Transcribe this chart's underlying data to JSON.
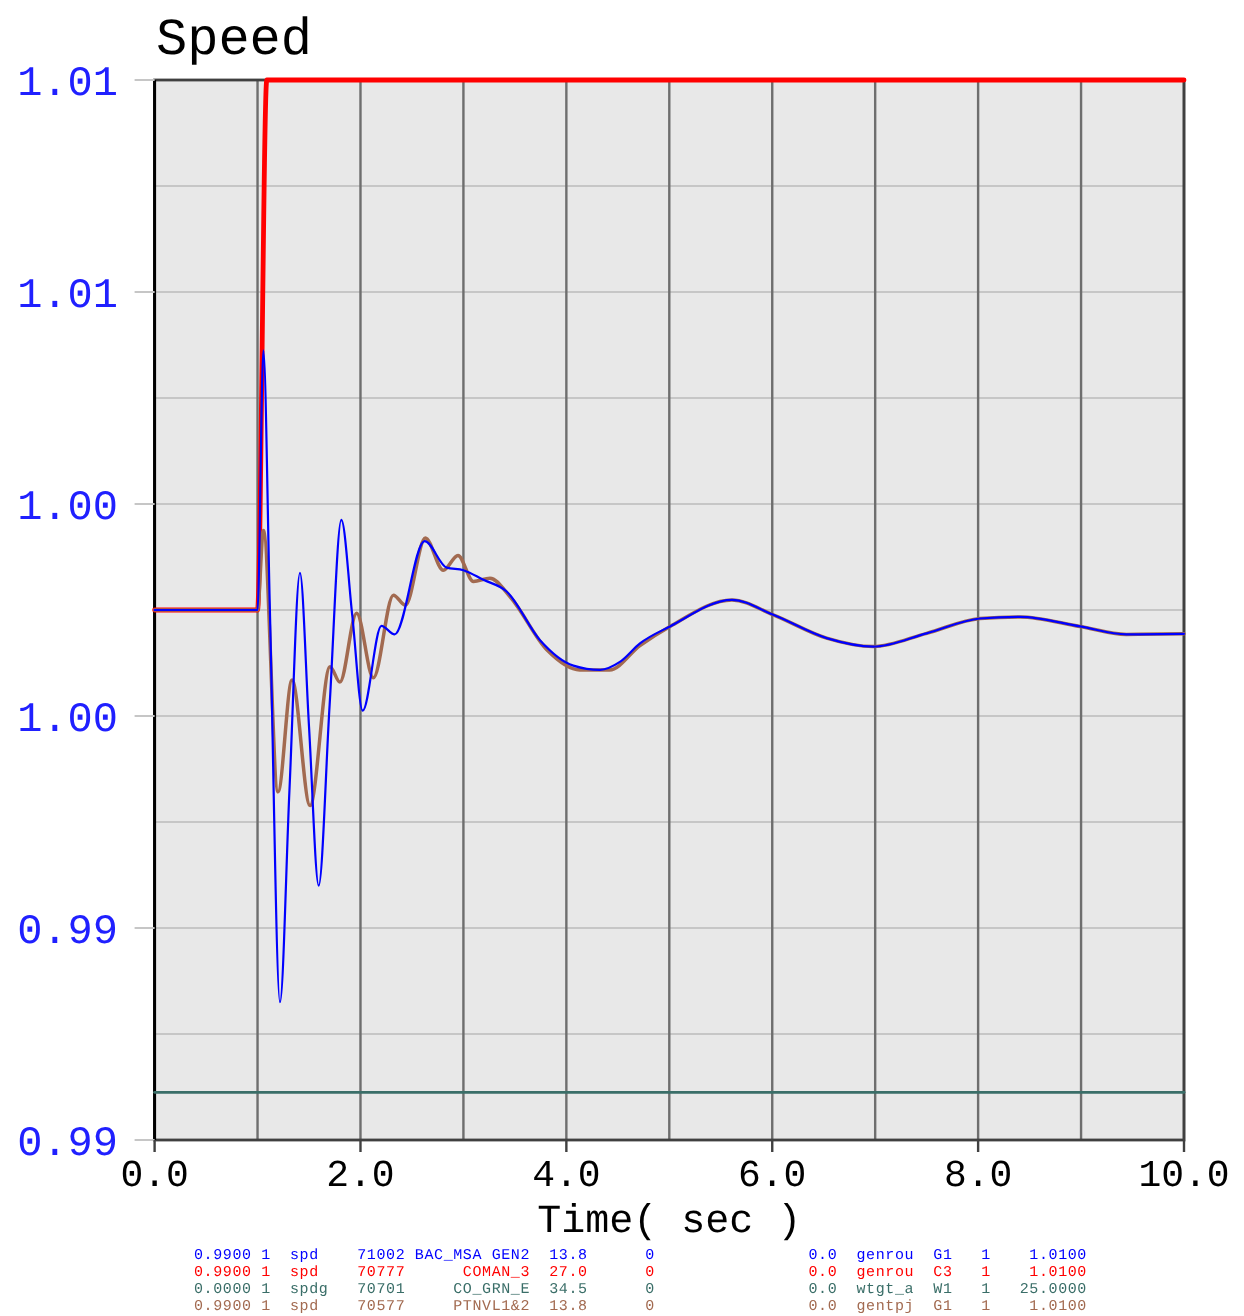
{
  "chart_data": {
    "type": "line",
    "title": "Speed",
    "xlabel": "Time( sec )",
    "xlim": [
      0,
      10
    ],
    "ylim": [
      0.99,
      1.01
    ],
    "xticks": [
      {
        "value": 0,
        "label": "0.0"
      },
      {
        "value": 1,
        "label": null
      },
      {
        "value": 2,
        "label": "2.0"
      },
      {
        "value": 3,
        "label": null
      },
      {
        "value": 4,
        "label": "4.0"
      },
      {
        "value": 5,
        "label": null
      },
      {
        "value": 6,
        "label": "6.0"
      },
      {
        "value": 7,
        "label": null
      },
      {
        "value": 8,
        "label": "8.0"
      },
      {
        "value": 9,
        "label": null
      },
      {
        "value": 10,
        "label": "10.0"
      }
    ],
    "yticks": [
      {
        "value": 0.99,
        "label": "0.99"
      },
      {
        "value": 0.992,
        "label": null
      },
      {
        "value": 0.994,
        "label": "0.99"
      },
      {
        "value": 0.996,
        "label": null
      },
      {
        "value": 0.998,
        "label": "1.00"
      },
      {
        "value": 1.0,
        "label": null
      },
      {
        "value": 1.002,
        "label": "1.00"
      },
      {
        "value": 1.004,
        "label": null
      },
      {
        "value": 1.006,
        "label": "1.01"
      },
      {
        "value": 1.008,
        "label": null
      },
      {
        "value": 1.01,
        "label": "1.01"
      }
    ],
    "grid": true,
    "legend": "bottom",
    "series": [
      {
        "name": "0.9900 1  spd    71002 BAC_MSA GEN2  13.8      0                0.0  genrou  G1   1    1.0100",
        "color": "#0000ff",
        "x": [
          0,
          0.5,
          1.0,
          1.057,
          1.12,
          1.218,
          1.31,
          1.412,
          1.5,
          1.594,
          1.7,
          1.814,
          1.92,
          2.021,
          2.203,
          2.332,
          2.623,
          2.837,
          3.0,
          3.194,
          3.42,
          3.744,
          4.068,
          4.327,
          4.52,
          4.715,
          5.007,
          5.609,
          6.01,
          6.528,
          6.982,
          7.5,
          8.018,
          8.407,
          8.99,
          9.44,
          10
        ],
        "values": [
          1.0,
          1.0,
          1.0,
          1.0049,
          1.0,
          0.9926,
          0.9966,
          1.0007,
          0.9978,
          0.9948,
          0.9982,
          1.0017,
          0.9999,
          0.9981,
          0.9997,
          0.99954,
          1.0013,
          1.0008,
          1.00075,
          1.00057,
          1.00035,
          0.99943,
          0.99895,
          0.99887,
          0.99902,
          0.99937,
          0.99969,
          1.00019,
          0.99991,
          0.99947,
          0.99931,
          0.99956,
          0.99984,
          0.99987,
          0.99969,
          0.99954,
          0.99955
        ]
      },
      {
        "name": "0.9900 1  spd    70777      COMAN_3  27.0      0                0.0  genrou  C3   1    1.0100",
        "color": "#ff0000",
        "x": [
          0,
          1.0,
          1.09,
          10
        ],
        "values": [
          1.0,
          1.0,
          1.01,
          1.01
        ]
      },
      {
        "name": "0.0000 1  spdg   70701     CO_GRN_E  34.5      0                0.0  wtgt_a  W1   1   25.0000",
        "color": "#3a6e68",
        "x": [
          0,
          10
        ],
        "values": [
          0.9909,
          0.9909
        ]
      },
      {
        "name": "0.9900 1  spd    70577     PTNVL1&2  13.8      0                0.0  gentpj  G1   1    1.0100",
        "color": "#a26a50",
        "x": [
          0,
          0.5,
          1.0,
          1.057,
          1.199,
          1.335,
          1.51,
          1.704,
          1.8,
          1.963,
          2.125,
          2.32,
          2.436,
          2.63,
          2.805,
          2.947,
          3.097,
          3.258,
          3.453,
          3.81,
          4.13,
          4.42,
          4.715,
          5.007,
          5.609,
          6.01,
          6.528,
          6.982,
          7.5,
          8.018,
          8.407,
          8.99,
          9.44,
          10
        ],
        "values": [
          1.0,
          1.0,
          1.0,
          1.0015,
          0.99657,
          0.99868,
          0.99631,
          0.99893,
          0.99864,
          0.99994,
          0.99872,
          1.00028,
          1.00009,
          1.00136,
          1.00075,
          1.00103,
          1.00054,
          1.0006,
          1.00025,
          0.99925,
          0.99887,
          0.99887,
          0.99933,
          0.99969,
          1.00019,
          0.99991,
          0.99947,
          0.99931,
          0.99956,
          0.99984,
          0.99987,
          0.99969,
          0.99954,
          0.99955
        ]
      }
    ]
  }
}
